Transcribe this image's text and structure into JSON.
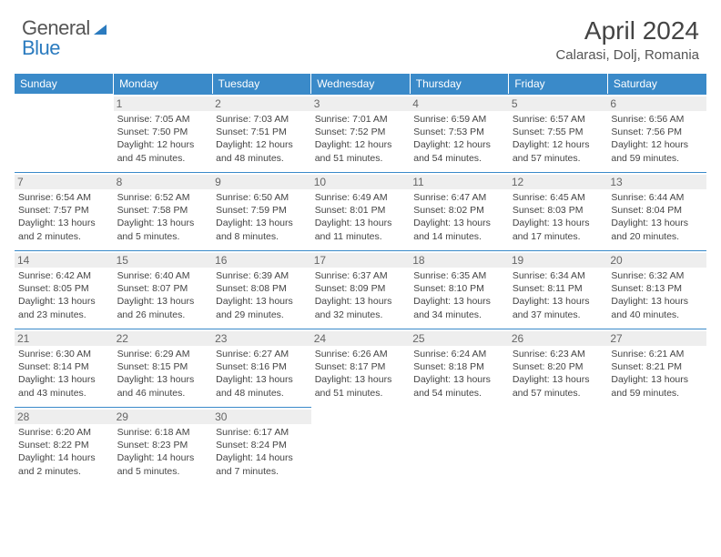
{
  "logo": {
    "text1": "General",
    "text2": "Blue"
  },
  "title": "April 2024",
  "subtitle": "Calarasi, Dolj, Romania",
  "colors": {
    "header_bg": "#3a8ac9",
    "header_text": "#ffffff",
    "daynum_bg": "#eeeeee",
    "daynum_text": "#666666",
    "cell_border": "#3a8ac9",
    "body_text": "#444444",
    "logo_blue": "#2b7bbf",
    "logo_gray": "#555555"
  },
  "weekdays": [
    "Sunday",
    "Monday",
    "Tuesday",
    "Wednesday",
    "Thursday",
    "Friday",
    "Saturday"
  ],
  "weeks": [
    [
      null,
      {
        "n": "1",
        "sr": "Sunrise: 7:05 AM",
        "ss": "Sunset: 7:50 PM",
        "d1": "Daylight: 12 hours",
        "d2": "and 45 minutes."
      },
      {
        "n": "2",
        "sr": "Sunrise: 7:03 AM",
        "ss": "Sunset: 7:51 PM",
        "d1": "Daylight: 12 hours",
        "d2": "and 48 minutes."
      },
      {
        "n": "3",
        "sr": "Sunrise: 7:01 AM",
        "ss": "Sunset: 7:52 PM",
        "d1": "Daylight: 12 hours",
        "d2": "and 51 minutes."
      },
      {
        "n": "4",
        "sr": "Sunrise: 6:59 AM",
        "ss": "Sunset: 7:53 PM",
        "d1": "Daylight: 12 hours",
        "d2": "and 54 minutes."
      },
      {
        "n": "5",
        "sr": "Sunrise: 6:57 AM",
        "ss": "Sunset: 7:55 PM",
        "d1": "Daylight: 12 hours",
        "d2": "and 57 minutes."
      },
      {
        "n": "6",
        "sr": "Sunrise: 6:56 AM",
        "ss": "Sunset: 7:56 PM",
        "d1": "Daylight: 12 hours",
        "d2": "and 59 minutes."
      }
    ],
    [
      {
        "n": "7",
        "sr": "Sunrise: 6:54 AM",
        "ss": "Sunset: 7:57 PM",
        "d1": "Daylight: 13 hours",
        "d2": "and 2 minutes."
      },
      {
        "n": "8",
        "sr": "Sunrise: 6:52 AM",
        "ss": "Sunset: 7:58 PM",
        "d1": "Daylight: 13 hours",
        "d2": "and 5 minutes."
      },
      {
        "n": "9",
        "sr": "Sunrise: 6:50 AM",
        "ss": "Sunset: 7:59 PM",
        "d1": "Daylight: 13 hours",
        "d2": "and 8 minutes."
      },
      {
        "n": "10",
        "sr": "Sunrise: 6:49 AM",
        "ss": "Sunset: 8:01 PM",
        "d1": "Daylight: 13 hours",
        "d2": "and 11 minutes."
      },
      {
        "n": "11",
        "sr": "Sunrise: 6:47 AM",
        "ss": "Sunset: 8:02 PM",
        "d1": "Daylight: 13 hours",
        "d2": "and 14 minutes."
      },
      {
        "n": "12",
        "sr": "Sunrise: 6:45 AM",
        "ss": "Sunset: 8:03 PM",
        "d1": "Daylight: 13 hours",
        "d2": "and 17 minutes."
      },
      {
        "n": "13",
        "sr": "Sunrise: 6:44 AM",
        "ss": "Sunset: 8:04 PM",
        "d1": "Daylight: 13 hours",
        "d2": "and 20 minutes."
      }
    ],
    [
      {
        "n": "14",
        "sr": "Sunrise: 6:42 AM",
        "ss": "Sunset: 8:05 PM",
        "d1": "Daylight: 13 hours",
        "d2": "and 23 minutes."
      },
      {
        "n": "15",
        "sr": "Sunrise: 6:40 AM",
        "ss": "Sunset: 8:07 PM",
        "d1": "Daylight: 13 hours",
        "d2": "and 26 minutes."
      },
      {
        "n": "16",
        "sr": "Sunrise: 6:39 AM",
        "ss": "Sunset: 8:08 PM",
        "d1": "Daylight: 13 hours",
        "d2": "and 29 minutes."
      },
      {
        "n": "17",
        "sr": "Sunrise: 6:37 AM",
        "ss": "Sunset: 8:09 PM",
        "d1": "Daylight: 13 hours",
        "d2": "and 32 minutes."
      },
      {
        "n": "18",
        "sr": "Sunrise: 6:35 AM",
        "ss": "Sunset: 8:10 PM",
        "d1": "Daylight: 13 hours",
        "d2": "and 34 minutes."
      },
      {
        "n": "19",
        "sr": "Sunrise: 6:34 AM",
        "ss": "Sunset: 8:11 PM",
        "d1": "Daylight: 13 hours",
        "d2": "and 37 minutes."
      },
      {
        "n": "20",
        "sr": "Sunrise: 6:32 AM",
        "ss": "Sunset: 8:13 PM",
        "d1": "Daylight: 13 hours",
        "d2": "and 40 minutes."
      }
    ],
    [
      {
        "n": "21",
        "sr": "Sunrise: 6:30 AM",
        "ss": "Sunset: 8:14 PM",
        "d1": "Daylight: 13 hours",
        "d2": "and 43 minutes."
      },
      {
        "n": "22",
        "sr": "Sunrise: 6:29 AM",
        "ss": "Sunset: 8:15 PM",
        "d1": "Daylight: 13 hours",
        "d2": "and 46 minutes."
      },
      {
        "n": "23",
        "sr": "Sunrise: 6:27 AM",
        "ss": "Sunset: 8:16 PM",
        "d1": "Daylight: 13 hours",
        "d2": "and 48 minutes."
      },
      {
        "n": "24",
        "sr": "Sunrise: 6:26 AM",
        "ss": "Sunset: 8:17 PM",
        "d1": "Daylight: 13 hours",
        "d2": "and 51 minutes."
      },
      {
        "n": "25",
        "sr": "Sunrise: 6:24 AM",
        "ss": "Sunset: 8:18 PM",
        "d1": "Daylight: 13 hours",
        "d2": "and 54 minutes."
      },
      {
        "n": "26",
        "sr": "Sunrise: 6:23 AM",
        "ss": "Sunset: 8:20 PM",
        "d1": "Daylight: 13 hours",
        "d2": "and 57 minutes."
      },
      {
        "n": "27",
        "sr": "Sunrise: 6:21 AM",
        "ss": "Sunset: 8:21 PM",
        "d1": "Daylight: 13 hours",
        "d2": "and 59 minutes."
      }
    ],
    [
      {
        "n": "28",
        "sr": "Sunrise: 6:20 AM",
        "ss": "Sunset: 8:22 PM",
        "d1": "Daylight: 14 hours",
        "d2": "and 2 minutes."
      },
      {
        "n": "29",
        "sr": "Sunrise: 6:18 AM",
        "ss": "Sunset: 8:23 PM",
        "d1": "Daylight: 14 hours",
        "d2": "and 5 minutes."
      },
      {
        "n": "30",
        "sr": "Sunrise: 6:17 AM",
        "ss": "Sunset: 8:24 PM",
        "d1": "Daylight: 14 hours",
        "d2": "and 7 minutes."
      },
      null,
      null,
      null,
      null
    ]
  ]
}
